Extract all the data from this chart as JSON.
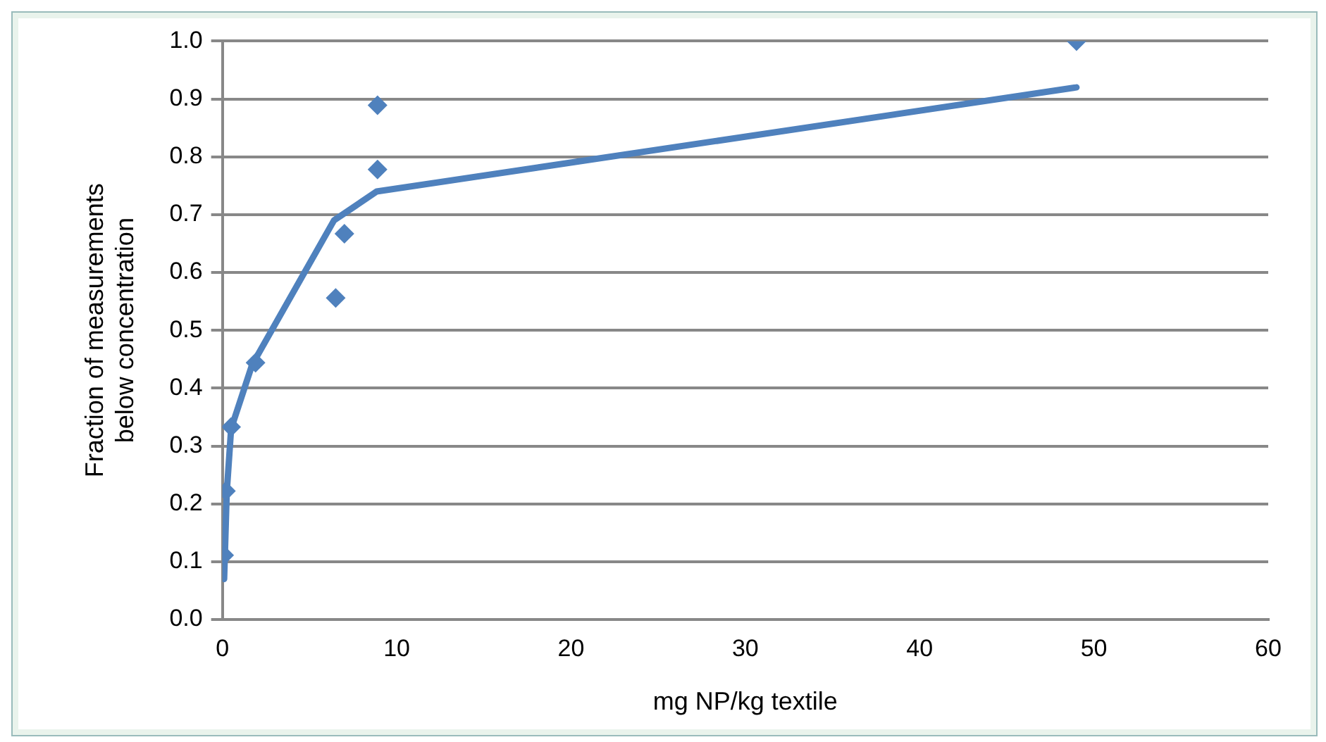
{
  "chart_data": {
    "type": "scatter",
    "xlabel": "mg NP/kg textile",
    "ylabel": "Fraction of measurements below concentration",
    "xlim": [
      0,
      60
    ],
    "xticks": [
      0,
      10,
      20,
      30,
      40,
      50,
      60
    ],
    "ylim": [
      0,
      1
    ],
    "yticks": [
      {
        "value": 0,
        "label": "0.0"
      },
      0.1,
      0.2,
      0.3,
      0.4,
      0.5,
      0.6,
      0.7,
      0.8,
      0.9,
      {
        "value": 1,
        "label": "1.0"
      }
    ],
    "grid": "y",
    "legend": false,
    "marker": "diamond",
    "series": [
      {
        "type": "scatter",
        "color": "#4f81bd",
        "x": [
          0.1,
          0.2,
          0.5,
          1.9,
          6.5,
          7.0,
          8.9,
          8.9,
          49.0
        ],
        "values": [
          0.111,
          0.222,
          0.333,
          0.444,
          0.556,
          0.667,
          0.778,
          0.889,
          1.0
        ]
      },
      {
        "type": "line",
        "color": "#4f81bd",
        "marker": "none",
        "x": [
          0.1,
          0.25,
          0.5,
          1.7,
          6.4,
          8.85,
          49.0
        ],
        "values": [
          0.07,
          0.22,
          0.33,
          0.44,
          0.69,
          0.74,
          0.92
        ]
      }
    ]
  }
}
